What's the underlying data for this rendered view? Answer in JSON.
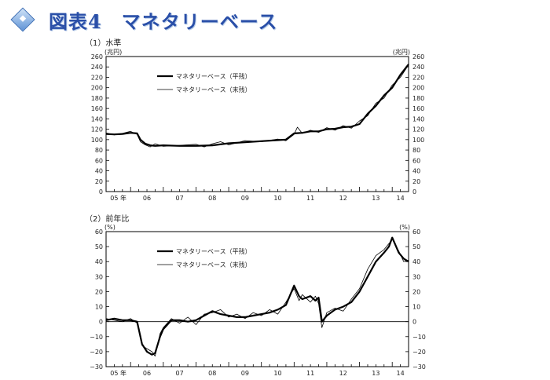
{
  "header": {
    "title": "図表4　マネタリーベース"
  },
  "chart_data": [
    {
      "type": "line",
      "panel_label": "（1）水準",
      "unit_left": "(兆円)",
      "unit_right": "(兆円)",
      "ylim": [
        0,
        260
      ],
      "yticks": [
        0,
        20,
        40,
        60,
        80,
        100,
        120,
        140,
        160,
        180,
        200,
        220,
        240,
        260
      ],
      "xlim": [
        2005.25,
        2014.5
      ],
      "xtick_labels": [
        "05 年",
        "06",
        "07",
        "08",
        "09",
        "10",
        "11",
        "12",
        "13",
        "14"
      ],
      "grid": false,
      "legend_placement": "top-left",
      "series": [
        {
          "name": "マネタリーベース（平残）",
          "x": [
            2005.25,
            2005.5,
            2005.75,
            2006.0,
            2006.2,
            2006.3,
            2006.45,
            2006.6,
            2006.75,
            2007.0,
            2007.5,
            2008.0,
            2008.5,
            2009.0,
            2009.5,
            2010.0,
            2010.5,
            2010.75,
            2011.0,
            2011.25,
            2011.5,
            2011.75,
            2012.0,
            2012.25,
            2012.5,
            2012.75,
            2013.0,
            2013.25,
            2013.5,
            2013.75,
            2014.0,
            2014.25,
            2014.5
          ],
          "values": [
            111,
            110,
            111,
            113,
            112,
            100,
            92,
            89,
            88,
            89,
            88,
            88,
            89,
            93,
            95,
            97,
            99,
            100,
            112,
            113,
            116,
            116,
            120,
            121,
            124,
            125,
            130,
            150,
            165,
            185,
            200,
            225,
            245
          ]
        },
        {
          "name": "マネタリーベース（末残）",
          "x": [
            2005.25,
            2005.5,
            2005.75,
            2006.0,
            2006.2,
            2006.3,
            2006.45,
            2006.6,
            2006.75,
            2007.0,
            2007.5,
            2008.0,
            2008.25,
            2008.5,
            2008.75,
            2009.0,
            2009.5,
            2010.0,
            2010.5,
            2010.75,
            2011.0,
            2011.1,
            2011.25,
            2011.5,
            2011.75,
            2012.0,
            2012.25,
            2012.5,
            2012.75,
            2013.0,
            2013.25,
            2013.5,
            2013.75,
            2014.0,
            2014.25,
            2014.5
          ],
          "values": [
            113,
            109,
            112,
            116,
            110,
            96,
            90,
            86,
            92,
            87,
            89,
            91,
            86,
            92,
            96,
            90,
            98,
            96,
            101,
            98,
            110,
            124,
            112,
            118,
            114,
            123,
            118,
            127,
            122,
            136,
            146,
            170,
            180,
            205,
            220,
            244
          ]
        }
      ]
    },
    {
      "type": "line",
      "panel_label": "（2）前年比",
      "unit_left": "(%)",
      "unit_right": "(%)",
      "ylim": [
        -30,
        60
      ],
      "yticks": [
        -30,
        -20,
        -10,
        0,
        10,
        20,
        30,
        40,
        50,
        60
      ],
      "xlim": [
        2005.25,
        2014.5
      ],
      "xtick_labels": [
        "05 年",
        "06",
        "07",
        "08",
        "09",
        "10",
        "11",
        "12",
        "13",
        "14"
      ],
      "grid": false,
      "legend_placement": "top-left",
      "series": [
        {
          "name": "マネタリーベース（平残）",
          "x": [
            2005.25,
            2005.5,
            2005.75,
            2006.0,
            2006.2,
            2006.35,
            2006.5,
            2006.65,
            2006.75,
            2006.9,
            2007.0,
            2007.25,
            2007.5,
            2007.75,
            2008.0,
            2008.25,
            2008.5,
            2008.75,
            2009.0,
            2009.25,
            2009.5,
            2009.75,
            2010.0,
            2010.25,
            2010.5,
            2010.75,
            2011.0,
            2011.15,
            2011.25,
            2011.5,
            2011.65,
            2011.75,
            2011.85,
            2012.0,
            2012.25,
            2012.5,
            2012.75,
            2013.0,
            2013.25,
            2013.5,
            2013.75,
            2013.9,
            2014.0,
            2014.2,
            2014.35,
            2014.5
          ],
          "values": [
            1,
            2,
            1,
            1,
            0,
            -15,
            -20,
            -22,
            -21,
            -10,
            -5,
            1,
            1,
            0,
            1,
            4,
            7,
            5,
            4,
            3,
            3,
            4,
            5,
            6,
            8,
            11,
            24,
            17,
            15,
            17,
            14,
            16,
            0,
            4,
            8,
            10,
            13,
            20,
            30,
            40,
            46,
            50,
            56,
            46,
            42,
            40
          ]
        },
        {
          "name": "マネタリーベース（末残）",
          "x": [
            2005.25,
            2005.5,
            2005.75,
            2006.0,
            2006.2,
            2006.35,
            2006.5,
            2006.65,
            2006.75,
            2006.9,
            2007.0,
            2007.25,
            2007.5,
            2007.75,
            2008.0,
            2008.25,
            2008.5,
            2008.75,
            2009.0,
            2009.25,
            2009.5,
            2009.75,
            2010.0,
            2010.25,
            2010.5,
            2010.75,
            2011.0,
            2011.15,
            2011.25,
            2011.5,
            2011.65,
            2011.75,
            2011.85,
            2012.0,
            2012.25,
            2012.5,
            2012.75,
            2013.0,
            2013.25,
            2013.5,
            2013.75,
            2013.9,
            2014.0,
            2014.2,
            2014.35,
            2014.5
          ],
          "values": [
            2,
            1,
            0,
            2,
            -1,
            -16,
            -18,
            -20,
            -23,
            -8,
            -4,
            2,
            -1,
            3,
            -2,
            5,
            6,
            8,
            3,
            5,
            2,
            6,
            4,
            8,
            5,
            13,
            22,
            14,
            18,
            13,
            17,
            12,
            -4,
            6,
            9,
            7,
            15,
            22,
            35,
            44,
            48,
            52,
            55,
            47,
            40,
            41
          ]
        }
      ]
    }
  ]
}
